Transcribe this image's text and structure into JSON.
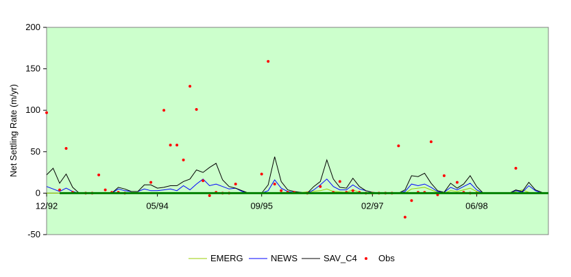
{
  "chart_data": {
    "type": "line",
    "title": "",
    "xlabel": "",
    "ylabel": "Net Settling Rate (m/yr)",
    "ylim": [
      -50,
      200
    ],
    "yticks": [
      200,
      150,
      100,
      50,
      0,
      -50
    ],
    "xlim": [
      "12/92",
      "05/99"
    ],
    "xticks": [
      "12/92",
      "05/94",
      "09/95",
      "02/97",
      "06/98"
    ],
    "plot_background": "#CCFFCC",
    "grid": false,
    "legend_position": "bottom",
    "series": [
      {
        "name": "EMERG",
        "color": "#99CC00",
        "kind": "line",
        "points": [
          [
            "12/92",
            0
          ],
          [
            "02/93",
            0
          ],
          [
            "06/93",
            0
          ],
          [
            "10/93",
            0
          ],
          [
            "02/94",
            0
          ],
          [
            "06/94",
            0
          ],
          [
            "10/94",
            0
          ],
          [
            "02/95",
            0
          ],
          [
            "06/95",
            0
          ],
          [
            "10/95",
            0
          ],
          [
            "02/96",
            0
          ],
          [
            "06/96",
            3
          ],
          [
            "07/96",
            5
          ],
          [
            "08/96",
            2
          ],
          [
            "10/96",
            1
          ],
          [
            "11/96",
            4
          ],
          [
            "12/96",
            1
          ],
          [
            "02/97",
            0
          ],
          [
            "05/97",
            0
          ],
          [
            "07/97",
            0
          ],
          [
            "08/97",
            5
          ],
          [
            "09/97",
            6
          ],
          [
            "10/97",
            7
          ],
          [
            "11/97",
            4
          ],
          [
            "12/97",
            1
          ],
          [
            "01/98",
            0
          ],
          [
            "02/98",
            3
          ],
          [
            "03/98",
            2
          ],
          [
            "04/98",
            4
          ],
          [
            "05/98",
            6
          ],
          [
            "06/98",
            2
          ],
          [
            "07/98",
            0
          ],
          [
            "11/98",
            0
          ],
          [
            "01/99",
            4
          ],
          [
            "02/99",
            1
          ],
          [
            "03/99",
            0
          ]
        ]
      },
      {
        "name": "NEWS",
        "color": "#0000FF",
        "kind": "line",
        "points": [
          [
            "12/92",
            8
          ],
          [
            "01/93",
            5
          ],
          [
            "02/93",
            2
          ],
          [
            "03/93",
            6
          ],
          [
            "04/93",
            2
          ],
          [
            "05/93",
            0
          ],
          [
            "07/93",
            0
          ],
          [
            "09/93",
            0
          ],
          [
            "10/93",
            0
          ],
          [
            "11/93",
            5
          ],
          [
            "12/93",
            3
          ],
          [
            "01/94",
            2
          ],
          [
            "02/94",
            2
          ],
          [
            "03/94",
            5
          ],
          [
            "04/94",
            3
          ],
          [
            "05/94",
            3
          ],
          [
            "06/94",
            4
          ],
          [
            "07/94",
            5
          ],
          [
            "08/94",
            3
          ],
          [
            "09/94",
            9
          ],
          [
            "10/94",
            4
          ],
          [
            "11/94",
            11
          ],
          [
            "12/94",
            17
          ],
          [
            "01/95",
            9
          ],
          [
            "02/95",
            11
          ],
          [
            "03/95",
            8
          ],
          [
            "04/95",
            5
          ],
          [
            "05/95",
            6
          ],
          [
            "06/95",
            2
          ],
          [
            "07/95",
            0
          ],
          [
            "09/95",
            0
          ],
          [
            "10/95",
            3
          ],
          [
            "11/95",
            16
          ],
          [
            "12/95",
            6
          ],
          [
            "01/96",
            2
          ],
          [
            "02/96",
            1
          ],
          [
            "03/96",
            1
          ],
          [
            "04/96",
            0
          ],
          [
            "05/96",
            4
          ],
          [
            "06/96",
            10
          ],
          [
            "07/96",
            17
          ],
          [
            "08/96",
            8
          ],
          [
            "09/96",
            4
          ],
          [
            "10/96",
            4
          ],
          [
            "11/96",
            10
          ],
          [
            "12/96",
            5
          ],
          [
            "01/97",
            3
          ],
          [
            "02/97",
            1
          ],
          [
            "04/97",
            0
          ],
          [
            "06/97",
            0
          ],
          [
            "07/97",
            2
          ],
          [
            "08/97",
            11
          ],
          [
            "09/97",
            9
          ],
          [
            "10/97",
            11
          ],
          [
            "11/97",
            7
          ],
          [
            "12/97",
            2
          ],
          [
            "01/98",
            1
          ],
          [
            "02/98",
            7
          ],
          [
            "03/98",
            4
          ],
          [
            "04/98",
            8
          ],
          [
            "05/98",
            12
          ],
          [
            "06/98",
            4
          ],
          [
            "07/98",
            0
          ],
          [
            "11/98",
            0
          ],
          [
            "12/98",
            3
          ],
          [
            "01/99",
            1
          ],
          [
            "02/99",
            9
          ],
          [
            "03/99",
            3
          ],
          [
            "04/99",
            0
          ]
        ]
      },
      {
        "name": "SAV_C4",
        "color": "#000000",
        "kind": "line",
        "points": [
          [
            "12/92",
            22
          ],
          [
            "01/93",
            30
          ],
          [
            "02/93",
            12
          ],
          [
            "03/93",
            23
          ],
          [
            "04/93",
            7
          ],
          [
            "05/93",
            0
          ],
          [
            "07/93",
            0
          ],
          [
            "09/93",
            0
          ],
          [
            "10/93",
            0
          ],
          [
            "11/93",
            7
          ],
          [
            "12/93",
            5
          ],
          [
            "01/94",
            2
          ],
          [
            "02/94",
            2
          ],
          [
            "03/94",
            10
          ],
          [
            "04/94",
            10
          ],
          [
            "05/94",
            6
          ],
          [
            "06/94",
            7
          ],
          [
            "07/94",
            9
          ],
          [
            "08/94",
            9
          ],
          [
            "09/94",
            14
          ],
          [
            "10/94",
            17
          ],
          [
            "11/94",
            28
          ],
          [
            "12/94",
            25
          ],
          [
            "01/95",
            31
          ],
          [
            "02/95",
            36
          ],
          [
            "03/95",
            16
          ],
          [
            "04/95",
            8
          ],
          [
            "05/95",
            6
          ],
          [
            "06/95",
            3
          ],
          [
            "07/95",
            0
          ],
          [
            "09/95",
            0
          ],
          [
            "10/95",
            10
          ],
          [
            "11/95",
            44
          ],
          [
            "12/95",
            14
          ],
          [
            "01/96",
            4
          ],
          [
            "02/96",
            2
          ],
          [
            "03/96",
            1
          ],
          [
            "04/96",
            0
          ],
          [
            "05/96",
            8
          ],
          [
            "06/96",
            14
          ],
          [
            "07/96",
            40
          ],
          [
            "08/96",
            17
          ],
          [
            "09/96",
            7
          ],
          [
            "10/96",
            6
          ],
          [
            "11/96",
            18
          ],
          [
            "12/96",
            8
          ],
          [
            "01/97",
            3
          ],
          [
            "02/97",
            1
          ],
          [
            "04/97",
            0
          ],
          [
            "06/97",
            0
          ],
          [
            "07/97",
            4
          ],
          [
            "08/97",
            21
          ],
          [
            "09/97",
            20
          ],
          [
            "10/97",
            24
          ],
          [
            "11/97",
            12
          ],
          [
            "12/97",
            3
          ],
          [
            "01/98",
            1
          ],
          [
            "02/98",
            12
          ],
          [
            "03/98",
            6
          ],
          [
            "04/98",
            11
          ],
          [
            "05/98",
            21
          ],
          [
            "06/98",
            8
          ],
          [
            "07/98",
            0
          ],
          [
            "11/98",
            0
          ],
          [
            "12/98",
            4
          ],
          [
            "01/99",
            2
          ],
          [
            "02/99",
            13
          ],
          [
            "03/99",
            4
          ],
          [
            "04/99",
            1
          ]
        ]
      },
      {
        "name": "Obs",
        "color": "#FF0000",
        "kind": "scatter",
        "points": [
          [
            "12/92",
            97
          ],
          [
            "02/93",
            4
          ],
          [
            "03/93",
            54
          ],
          [
            "04/93",
            1
          ],
          [
            "06/93",
            0
          ],
          [
            "07/93",
            0
          ],
          [
            "08/93",
            22
          ],
          [
            "09/93",
            4
          ],
          [
            "10/93",
            1
          ],
          [
            "11/93",
            1
          ],
          [
            "12/93",
            0
          ],
          [
            "04/94",
            13
          ],
          [
            "06/94",
            100
          ],
          [
            "07/94",
            58
          ],
          [
            "08/94",
            58
          ],
          [
            "09/94",
            40
          ],
          [
            "10/94",
            129
          ],
          [
            "11/94",
            101
          ],
          [
            "12/94",
            15
          ],
          [
            "01/95",
            -3
          ],
          [
            "02/95",
            1
          ],
          [
            "03/95",
            0
          ],
          [
            "04/95",
            0
          ],
          [
            "05/95",
            11
          ],
          [
            "09/95",
            23
          ],
          [
            "10/95",
            159
          ],
          [
            "11/95",
            11
          ],
          [
            "12/95",
            3
          ],
          [
            "01/96",
            1
          ],
          [
            "02/96",
            1
          ],
          [
            "04/96",
            0
          ],
          [
            "06/96",
            8
          ],
          [
            "08/96",
            1
          ],
          [
            "09/96",
            14
          ],
          [
            "10/96",
            1
          ],
          [
            "11/96",
            3
          ],
          [
            "12/96",
            1
          ],
          [
            "01/97",
            0
          ],
          [
            "02/97",
            0
          ],
          [
            "03/97",
            0
          ],
          [
            "04/97",
            0
          ],
          [
            "05/97",
            0
          ],
          [
            "06/97",
            57
          ],
          [
            "07/97",
            -29
          ],
          [
            "08/97",
            -9
          ],
          [
            "09/97",
            1
          ],
          [
            "10/97",
            1
          ],
          [
            "11/97",
            62
          ],
          [
            "12/97",
            -2
          ],
          [
            "01/98",
            21
          ],
          [
            "03/98",
            13
          ],
          [
            "04/98",
            1
          ],
          [
            "05/98",
            0
          ],
          [
            "06/98",
            0
          ],
          [
            "12/98",
            30
          ]
        ]
      }
    ]
  }
}
